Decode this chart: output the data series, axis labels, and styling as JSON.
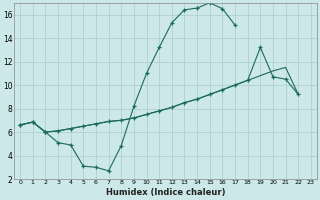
{
  "xlabel": "Humidex (Indice chaleur)",
  "bg_color": "#cce8e8",
  "grid_color": "#aacccc",
  "line_color": "#1a6b5a",
  "xlim": [
    -0.5,
    23.5
  ],
  "ylim": [
    2,
    17
  ],
  "xticks": [
    0,
    1,
    2,
    3,
    4,
    5,
    6,
    7,
    8,
    9,
    10,
    11,
    12,
    13,
    14,
    15,
    16,
    17,
    18,
    19,
    20,
    21,
    22,
    23
  ],
  "yticks": [
    2,
    4,
    6,
    8,
    10,
    12,
    14,
    16
  ],
  "line1_y": [
    6.6,
    6.85,
    6.0,
    5.1,
    4.9,
    3.1,
    3.0,
    2.7,
    4.85,
    8.2,
    11.0,
    13.2,
    15.3,
    16.4,
    16.55,
    17.0,
    16.5,
    15.1,
    null,
    null,
    null,
    null,
    null,
    null
  ],
  "line2_y": [
    6.6,
    6.85,
    6.0,
    6.1,
    6.3,
    6.5,
    6.7,
    6.9,
    7.0,
    7.2,
    7.5,
    7.8,
    8.1,
    8.5,
    8.8,
    9.2,
    9.6,
    10.0,
    10.4,
    13.2,
    10.7,
    10.5,
    9.2,
    null
  ],
  "line3_y": [
    6.6,
    6.85,
    6.0,
    6.1,
    6.3,
    6.5,
    6.7,
    6.9,
    7.0,
    7.2,
    7.5,
    7.8,
    8.1,
    8.5,
    8.8,
    9.2,
    9.6,
    10.0,
    10.4,
    10.8,
    11.2,
    11.5,
    9.2,
    null
  ]
}
